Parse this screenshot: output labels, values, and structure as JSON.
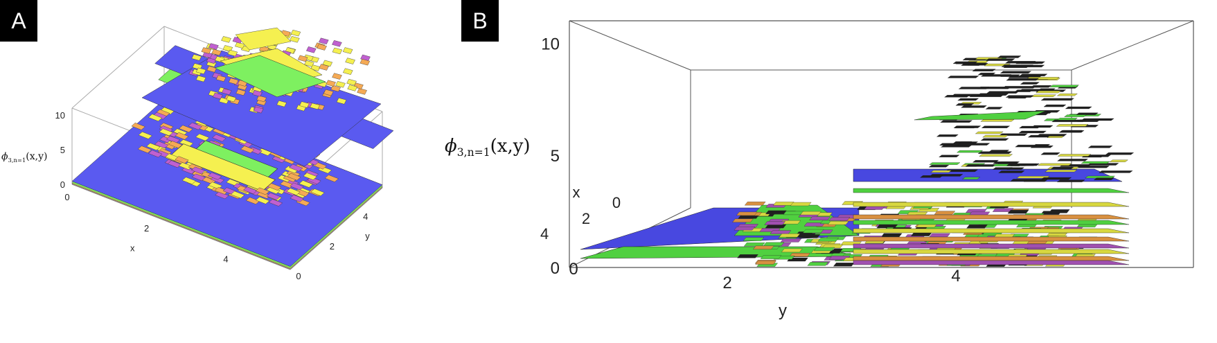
{
  "panels": [
    {
      "badge": "A"
    },
    {
      "badge": "B"
    }
  ],
  "zlabel": {
    "symbol": "ϕ",
    "sub": "3,n=1",
    "args": "(x,y)"
  },
  "chart_data": [
    {
      "type": "3d-bar-layers",
      "panel": "A",
      "xlabel": "x",
      "ylabel": "y",
      "zlabel": "ϕ3,n=1(x,y)",
      "xlim": [
        0,
        5.5
      ],
      "ylim": [
        0,
        5.5
      ],
      "zlim": [
        0,
        11
      ],
      "x_ticks": [
        "0",
        "2",
        "4"
      ],
      "y_ticks": [
        "0",
        "2",
        "4"
      ],
      "z_ticks": [
        "0",
        "5",
        "10"
      ],
      "layer_colors": {
        "blue": "#5a5af0",
        "green": "#7ef060",
        "yellow": "#f5f050",
        "orange": "#f5aa55",
        "magenta": "#c060d0"
      }
    },
    {
      "type": "3d-bar-layers",
      "panel": "B",
      "xlabel": "x",
      "ylabel": "y",
      "zlim": [
        0,
        11
      ],
      "x_ticks": [
        "0",
        "2",
        "4"
      ],
      "y_ticks": [
        "0",
        "2",
        "4"
      ],
      "z_ticks": [
        "0",
        "5",
        "10"
      ],
      "layer_colors": {
        "blue": "#4848e0",
        "green": "#50d040",
        "yellow": "#d8d840",
        "orange": "#d89040",
        "magenta": "#a050b0",
        "dark": "#202020"
      }
    }
  ]
}
